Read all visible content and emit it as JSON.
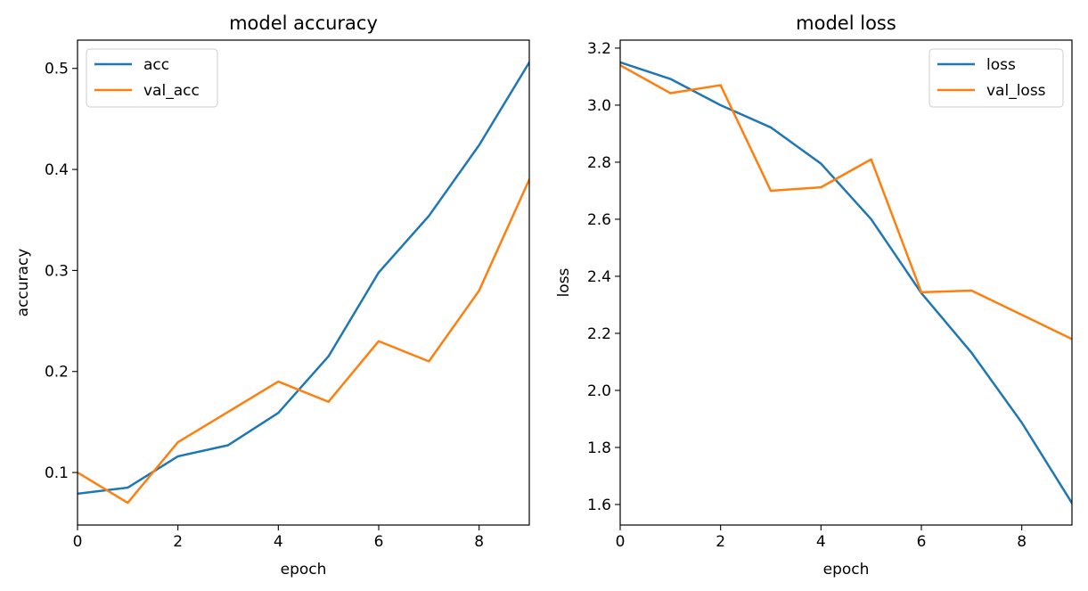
{
  "chart_data": [
    {
      "type": "line",
      "title": "model accuracy",
      "xlabel": "epoch",
      "ylabel": "accuracy",
      "xlim": [
        0,
        9
      ],
      "ylim": [
        0.048,
        0.528
      ],
      "xticks": [
        0,
        2,
        4,
        6,
        8
      ],
      "yticks": [
        0.1,
        0.2,
        0.3,
        0.4,
        0.5
      ],
      "x": [
        0,
        1,
        2,
        3,
        4,
        5,
        6,
        7,
        8,
        9
      ],
      "series": [
        {
          "name": "acc",
          "color": "#1f77b4",
          "values": [
            0.079,
            0.085,
            0.116,
            0.127,
            0.159,
            0.215,
            0.298,
            0.354,
            0.424,
            0.506
          ]
        },
        {
          "name": "val_acc",
          "color": "#ff7f0e",
          "values": [
            0.1,
            0.07,
            0.13,
            0.16,
            0.19,
            0.17,
            0.23,
            0.21,
            0.28,
            0.39
          ]
        }
      ],
      "legend": "upper left",
      "grid": false
    },
    {
      "type": "line",
      "title": "model loss",
      "xlabel": "epoch",
      "ylabel": "loss",
      "xlim": [
        0,
        9
      ],
      "ylim": [
        1.528,
        3.228
      ],
      "xticks": [
        0,
        2,
        4,
        6,
        8
      ],
      "yticks": [
        1.6,
        1.8,
        2.0,
        2.2,
        2.4,
        2.6,
        2.8,
        3.0,
        3.2
      ],
      "x": [
        0,
        1,
        2,
        3,
        4,
        5,
        6,
        7,
        8,
        9
      ],
      "series": [
        {
          "name": "loss",
          "color": "#1f77b4",
          "values": [
            3.15,
            3.092,
            3.0,
            2.922,
            2.795,
            2.6,
            2.341,
            2.132,
            1.887,
            1.605
          ]
        },
        {
          "name": "val_loss",
          "color": "#ff7f0e",
          "values": [
            3.14,
            3.042,
            3.07,
            2.7,
            2.712,
            2.81,
            2.344,
            2.35,
            2.265,
            2.18
          ]
        }
      ],
      "legend": "upper right",
      "grid": false
    }
  ]
}
